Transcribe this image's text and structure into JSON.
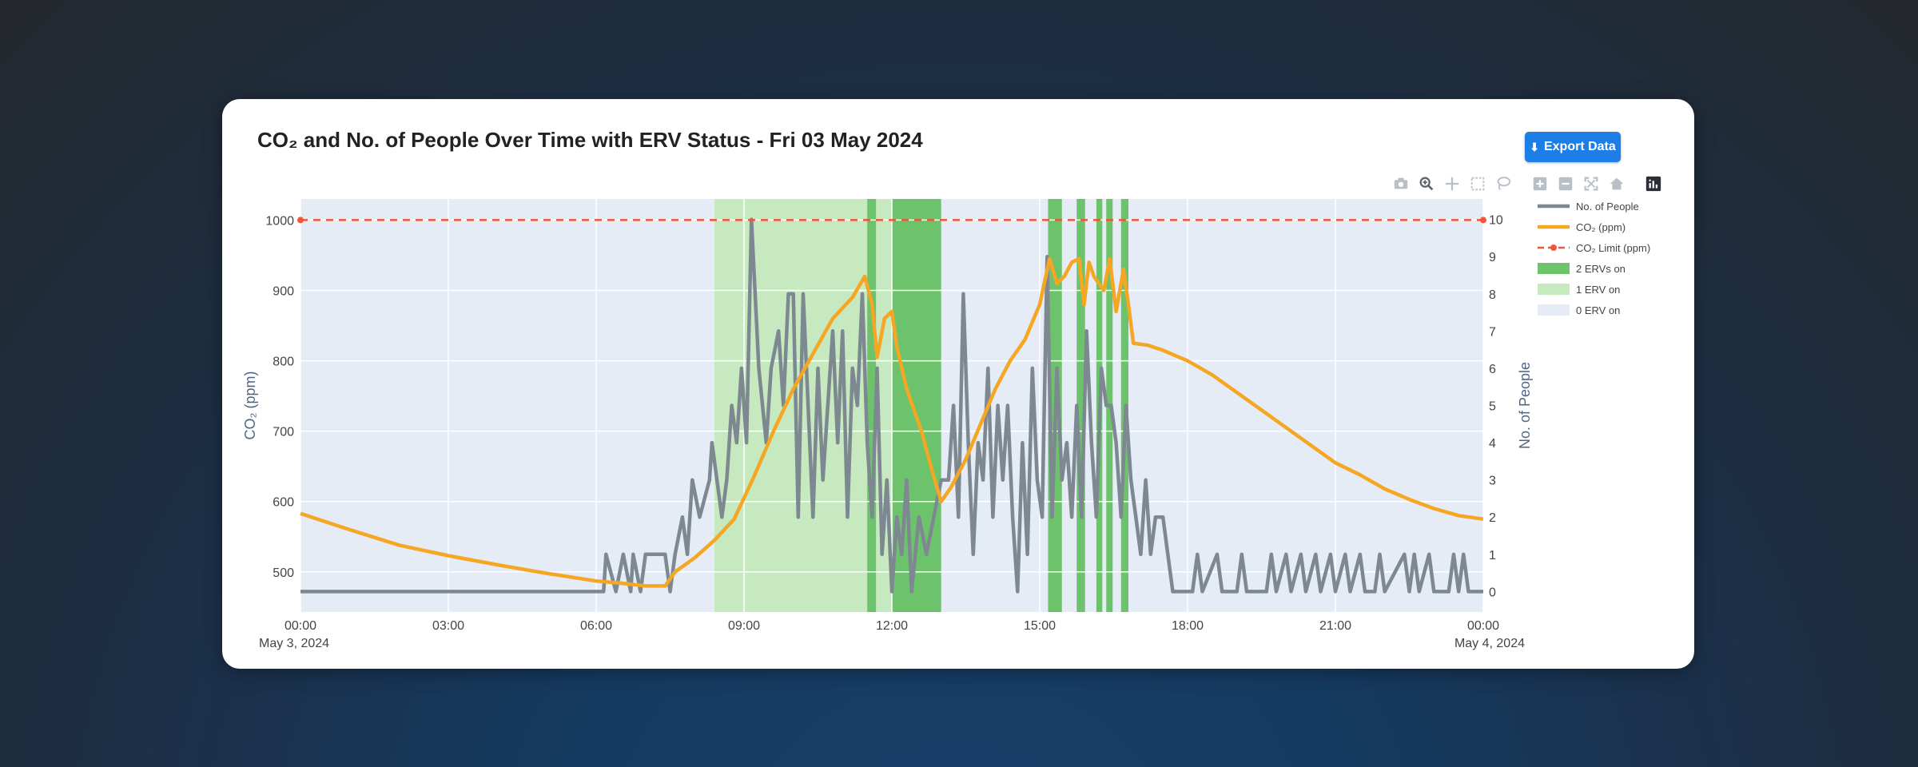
{
  "page": {
    "title": "CO₂ and No. of People Over Time with ERV Status - Fri 03 May 2024",
    "export_label": "Export Data"
  },
  "toolbar": {
    "icons": [
      "camera-icon",
      "zoom-icon",
      "pan-icon",
      "box-select-icon",
      "lasso-select-icon",
      "zoom-in-icon",
      "zoom-out-icon",
      "autoscale-icon",
      "reset-axes-icon",
      "plotly-logo-icon"
    ]
  },
  "colors": {
    "co2": "#f5a623",
    "people": "#7d8891",
    "limit": "#ef553b",
    "erv2": "#6cc36b",
    "erv1": "#c6e9c0",
    "erv0": "#e5ecf6",
    "export_button": "#1e7ee8"
  },
  "chart_data": {
    "type": "line",
    "title": "CO₂ and No. of People Over Time with ERV Status - Fri 03 May 2024",
    "xlabel": "",
    "x_ticks": [
      "00:00",
      "03:00",
      "06:00",
      "09:00",
      "12:00",
      "15:00",
      "18:00",
      "21:00",
      "00:00"
    ],
    "x_tick_sublabels": {
      "first": "May 3, 2024",
      "last": "May 4, 2024"
    },
    "x_range_hours": [
      0,
      24
    ],
    "y_left": {
      "label": "CO₂ (ppm)",
      "ticks": [
        500,
        600,
        700,
        800,
        900,
        1000
      ],
      "range": [
        443,
        1030
      ]
    },
    "y_right": {
      "label": "No. of People",
      "ticks": [
        0,
        1,
        2,
        3,
        4,
        5,
        6,
        7,
        8,
        9,
        10
      ],
      "range": [
        -0.55,
        10.55
      ]
    },
    "grid": true,
    "legend": {
      "placement": "right",
      "entries": [
        {
          "label": "No. of People",
          "style": "line"
        },
        {
          "label": "CO₂ (ppm)",
          "style": "line"
        },
        {
          "label": "CO₂ Limit (ppm)",
          "style": "dashed"
        },
        {
          "label": "2 ERVs on",
          "style": "box"
        },
        {
          "label": "1 ERV on",
          "style": "box"
        },
        {
          "label": "0 ERV on",
          "style": "box"
        }
      ]
    },
    "co2_limit_ppm": 1000,
    "erv_periods": [
      {
        "status": "1 ERV on",
        "start": 8.4,
        "end": 11.5
      },
      {
        "status": "2 ERVs on",
        "start": 11.5,
        "end": 11.68
      },
      {
        "status": "1 ERV on",
        "start": 11.68,
        "end": 12.0
      },
      {
        "status": "2 ERVs on",
        "start": 12.0,
        "end": 13.0
      },
      {
        "status": "2 ERVs on",
        "start": 15.17,
        "end": 15.45
      },
      {
        "status": "2 ERVs on",
        "start": 15.75,
        "end": 15.92
      },
      {
        "status": "2 ERVs on",
        "start": 16.15,
        "end": 16.27
      },
      {
        "status": "2 ERVs on",
        "start": 16.35,
        "end": 16.48
      },
      {
        "status": "2 ERVs on",
        "start": 16.65,
        "end": 16.8
      }
    ],
    "series": [
      {
        "name": "CO₂ (ppm)",
        "axis": "left",
        "points": [
          [
            0,
            583
          ],
          [
            1,
            560
          ],
          [
            2,
            538
          ],
          [
            3,
            523
          ],
          [
            4,
            510
          ],
          [
            5,
            498
          ],
          [
            6,
            487
          ],
          [
            6.5,
            484
          ],
          [
            7,
            480
          ],
          [
            7.4,
            480
          ],
          [
            7.6,
            500
          ],
          [
            8,
            520
          ],
          [
            8.4,
            545
          ],
          [
            8.8,
            575
          ],
          [
            9.2,
            635
          ],
          [
            9.6,
            700
          ],
          [
            10,
            760
          ],
          [
            10.4,
            810
          ],
          [
            10.8,
            860
          ],
          [
            11.2,
            890
          ],
          [
            11.45,
            920
          ],
          [
            11.6,
            880
          ],
          [
            11.7,
            805
          ],
          [
            11.85,
            860
          ],
          [
            12.0,
            870
          ],
          [
            12.1,
            820
          ],
          [
            12.3,
            760
          ],
          [
            12.6,
            700
          ],
          [
            12.85,
            635
          ],
          [
            13.0,
            600
          ],
          [
            13.2,
            620
          ],
          [
            13.5,
            660
          ],
          [
            13.8,
            710
          ],
          [
            14.1,
            760
          ],
          [
            14.4,
            800
          ],
          [
            14.7,
            830
          ],
          [
            15.0,
            880
          ],
          [
            15.2,
            945
          ],
          [
            15.35,
            910
          ],
          [
            15.5,
            920
          ],
          [
            15.65,
            940
          ],
          [
            15.8,
            945
          ],
          [
            15.9,
            880
          ],
          [
            16.0,
            940
          ],
          [
            16.1,
            920
          ],
          [
            16.3,
            900
          ],
          [
            16.42,
            945
          ],
          [
            16.55,
            870
          ],
          [
            16.7,
            930
          ],
          [
            16.8,
            880
          ],
          [
            16.9,
            825
          ],
          [
            17.2,
            822
          ],
          [
            17.5,
            815
          ],
          [
            18,
            800
          ],
          [
            18.5,
            780
          ],
          [
            19,
            755
          ],
          [
            19.5,
            730
          ],
          [
            20,
            705
          ],
          [
            20.5,
            680
          ],
          [
            21,
            655
          ],
          [
            21.5,
            638
          ],
          [
            22,
            618
          ],
          [
            22.5,
            603
          ],
          [
            23,
            590
          ],
          [
            23.5,
            580
          ],
          [
            24,
            575
          ]
        ]
      },
      {
        "name": "No. of People",
        "axis": "right",
        "points": [
          [
            0,
            0
          ],
          [
            6.15,
            0
          ],
          [
            6.2,
            1
          ],
          [
            6.4,
            0
          ],
          [
            6.55,
            1
          ],
          [
            6.7,
            0
          ],
          [
            6.75,
            1
          ],
          [
            6.9,
            0
          ],
          [
            7.0,
            1
          ],
          [
            7.4,
            1
          ],
          [
            7.5,
            0
          ],
          [
            7.6,
            1
          ],
          [
            7.75,
            2
          ],
          [
            7.85,
            1
          ],
          [
            7.95,
            3
          ],
          [
            8.1,
            2
          ],
          [
            8.3,
            3
          ],
          [
            8.35,
            4
          ],
          [
            8.45,
            3
          ],
          [
            8.55,
            2
          ],
          [
            8.65,
            3
          ],
          [
            8.75,
            5
          ],
          [
            8.85,
            4
          ],
          [
            8.95,
            6
          ],
          [
            9.05,
            4
          ],
          [
            9.15,
            10
          ],
          [
            9.3,
            6
          ],
          [
            9.45,
            4
          ],
          [
            9.55,
            6
          ],
          [
            9.7,
            7
          ],
          [
            9.8,
            5
          ],
          [
            9.9,
            8
          ],
          [
            10.0,
            8
          ],
          [
            10.1,
            2
          ],
          [
            10.2,
            8
          ],
          [
            10.3,
            5
          ],
          [
            10.4,
            2
          ],
          [
            10.5,
            6
          ],
          [
            10.6,
            3
          ],
          [
            10.7,
            5
          ],
          [
            10.8,
            7
          ],
          [
            10.9,
            4
          ],
          [
            11.0,
            7
          ],
          [
            11.1,
            2
          ],
          [
            11.2,
            6
          ],
          [
            11.3,
            5
          ],
          [
            11.4,
            8
          ],
          [
            11.5,
            4
          ],
          [
            11.6,
            2
          ],
          [
            11.7,
            6
          ],
          [
            11.8,
            1
          ],
          [
            11.9,
            3
          ],
          [
            12.0,
            0
          ],
          [
            12.1,
            2
          ],
          [
            12.2,
            1
          ],
          [
            12.3,
            3
          ],
          [
            12.4,
            0
          ],
          [
            12.55,
            2
          ],
          [
            12.7,
            1
          ],
          [
            12.85,
            2
          ],
          [
            13.0,
            3
          ],
          [
            13.15,
            3
          ],
          [
            13.25,
            5
          ],
          [
            13.35,
            2
          ],
          [
            13.45,
            8
          ],
          [
            13.55,
            4
          ],
          [
            13.65,
            1
          ],
          [
            13.75,
            4
          ],
          [
            13.85,
            3
          ],
          [
            13.95,
            6
          ],
          [
            14.05,
            2
          ],
          [
            14.15,
            5
          ],
          [
            14.25,
            3
          ],
          [
            14.35,
            5
          ],
          [
            14.45,
            2
          ],
          [
            14.55,
            0
          ],
          [
            14.65,
            4
          ],
          [
            14.75,
            1
          ],
          [
            14.85,
            6
          ],
          [
            14.95,
            3
          ],
          [
            15.05,
            2
          ],
          [
            15.15,
            9
          ],
          [
            15.25,
            2
          ],
          [
            15.35,
            6
          ],
          [
            15.45,
            3
          ],
          [
            15.55,
            4
          ],
          [
            15.65,
            2
          ],
          [
            15.75,
            5
          ],
          [
            15.85,
            2
          ],
          [
            15.95,
            7
          ],
          [
            16.05,
            4
          ],
          [
            16.15,
            2
          ],
          [
            16.25,
            6
          ],
          [
            16.35,
            5
          ],
          [
            16.45,
            5
          ],
          [
            16.55,
            4
          ],
          [
            16.65,
            2
          ],
          [
            16.75,
            5
          ],
          [
            16.85,
            3
          ],
          [
            16.95,
            2
          ],
          [
            17.05,
            1
          ],
          [
            17.15,
            3
          ],
          [
            17.25,
            1
          ],
          [
            17.35,
            2
          ],
          [
            17.5,
            2
          ],
          [
            17.6,
            1
          ],
          [
            17.7,
            0
          ],
          [
            18.1,
            0
          ],
          [
            18.2,
            1
          ],
          [
            18.3,
            0
          ],
          [
            18.6,
            1
          ],
          [
            18.7,
            0
          ],
          [
            19.0,
            0
          ],
          [
            19.1,
            1
          ],
          [
            19.2,
            0
          ],
          [
            19.6,
            0
          ],
          [
            19.7,
            1
          ],
          [
            19.8,
            0
          ],
          [
            20.0,
            1
          ],
          [
            20.1,
            0
          ],
          [
            20.3,
            1
          ],
          [
            20.4,
            0
          ],
          [
            20.6,
            1
          ],
          [
            20.7,
            0
          ],
          [
            20.9,
            1
          ],
          [
            21.0,
            0
          ],
          [
            21.2,
            1
          ],
          [
            21.3,
            0
          ],
          [
            21.5,
            1
          ],
          [
            21.6,
            0
          ],
          [
            21.8,
            0
          ],
          [
            21.9,
            1
          ],
          [
            22.0,
            0
          ],
          [
            22.4,
            1
          ],
          [
            22.5,
            0
          ],
          [
            22.6,
            1
          ],
          [
            22.7,
            0
          ],
          [
            22.9,
            1
          ],
          [
            23.0,
            0
          ],
          [
            23.3,
            0
          ],
          [
            23.4,
            1
          ],
          [
            23.5,
            0
          ],
          [
            23.6,
            1
          ],
          [
            23.7,
            0
          ],
          [
            24.0,
            0
          ]
        ]
      },
      {
        "name": "CO₂ Limit (ppm)",
        "axis": "left",
        "points": [
          [
            0,
            1000
          ],
          [
            24,
            1000
          ]
        ]
      }
    ]
  }
}
